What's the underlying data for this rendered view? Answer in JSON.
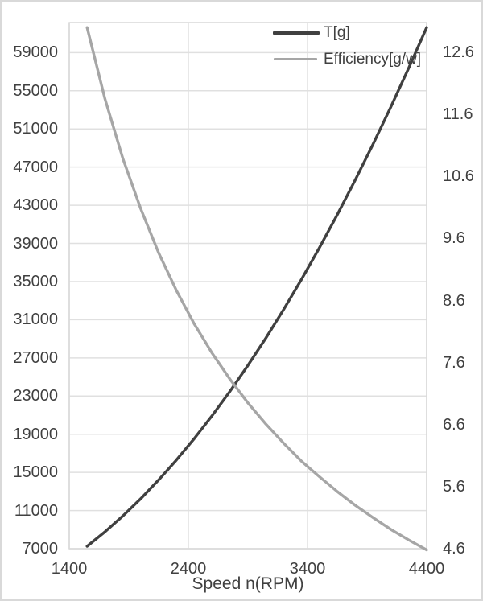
{
  "figure": {
    "background": "#ffffff",
    "border_color": "#d9d9d9",
    "gridline_color": "#e0e0e0",
    "plot_border_color": "#d9d9d9",
    "text_color": "#404040"
  },
  "legend": {
    "position": "top-right-inside",
    "items": [
      {
        "label": "T[g]",
        "color": "#404040"
      },
      {
        "label": "Efficiency[g/w]",
        "color": "#a6a6a6"
      }
    ]
  },
  "chart_data": {
    "type": "line",
    "title": "",
    "xlabel": "Speed n(RPM)",
    "grid": true,
    "legend_position": "top-right-inside",
    "x_axis": {
      "min": 1400,
      "max": 4400,
      "ticks": [
        1400,
        2400,
        3400,
        4400
      ]
    },
    "left_axis": {
      "min": 7000,
      "max": 62150,
      "tick_step": 4000,
      "ticks": [
        7000,
        11000,
        15000,
        19000,
        23000,
        27000,
        31000,
        35000,
        39000,
        43000,
        47000,
        51000,
        55000,
        59000
      ]
    },
    "right_axis": {
      "min": 4.6,
      "max": 13.08,
      "tick_step": 1.0,
      "ticks": [
        4.6,
        5.6,
        6.6,
        7.6,
        8.6,
        9.6,
        10.6,
        11.6,
        12.6
      ]
    },
    "x": [
      1550,
      1700,
      1850,
      2000,
      2150,
      2300,
      2450,
      2600,
      2750,
      2900,
      3050,
      3200,
      3350,
      3500,
      3650,
      3800,
      3950,
      4100,
      4250,
      4400
    ],
    "series": [
      {
        "name": "T[g]",
        "axis": "left",
        "color": "#404040",
        "values": [
          7250,
          8770,
          10430,
          12240,
          14200,
          16300,
          18550,
          20960,
          23510,
          26220,
          29070,
          32080,
          35240,
          38550,
          42010,
          45630,
          49400,
          53320,
          57400,
          61630
        ]
      },
      {
        "name": "Efficiency[g/w]",
        "axis": "right",
        "color": "#a6a6a6",
        "values": [
          13.0,
          11.85,
          10.89,
          10.08,
          9.37,
          8.76,
          8.22,
          7.75,
          7.33,
          6.95,
          6.61,
          6.3,
          6.01,
          5.76,
          5.52,
          5.3,
          5.1,
          4.91,
          4.74,
          4.58
        ]
      }
    ]
  }
}
